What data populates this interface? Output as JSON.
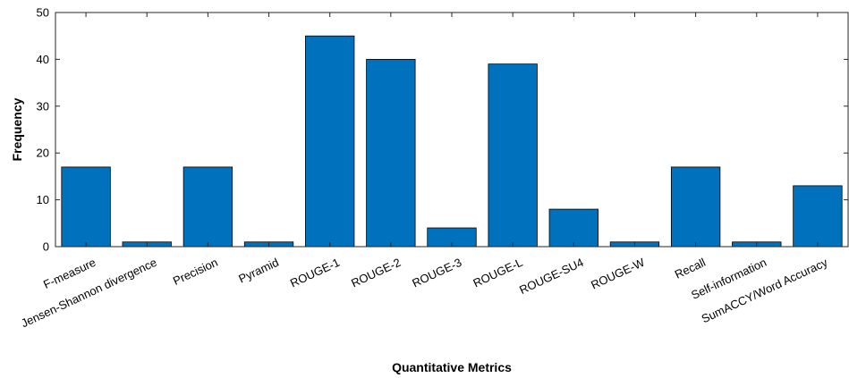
{
  "chart_data": {
    "type": "bar",
    "categories": [
      "F-measure",
      "Jensen-Shannon divergence",
      "Precision",
      "Pyramid",
      "ROUGE-1",
      "ROUGE-2",
      "ROUGE-3",
      "ROUGE-L",
      "ROUGE-SU4",
      "ROUGE-W",
      "Recall",
      "Self-information",
      "SumACCY/Word Accuracy"
    ],
    "values": [
      17,
      1,
      17,
      1,
      45,
      40,
      4,
      39,
      8,
      1,
      17,
      1,
      13
    ],
    "xlabel": "Quantitative Metrics",
    "ylabel": "Frequency",
    "ylim": [
      0,
      50
    ],
    "yticks": [
      "0",
      "10",
      "20",
      "30",
      "40",
      "50"
    ],
    "bar_color": "#0072BD",
    "grid": false
  }
}
